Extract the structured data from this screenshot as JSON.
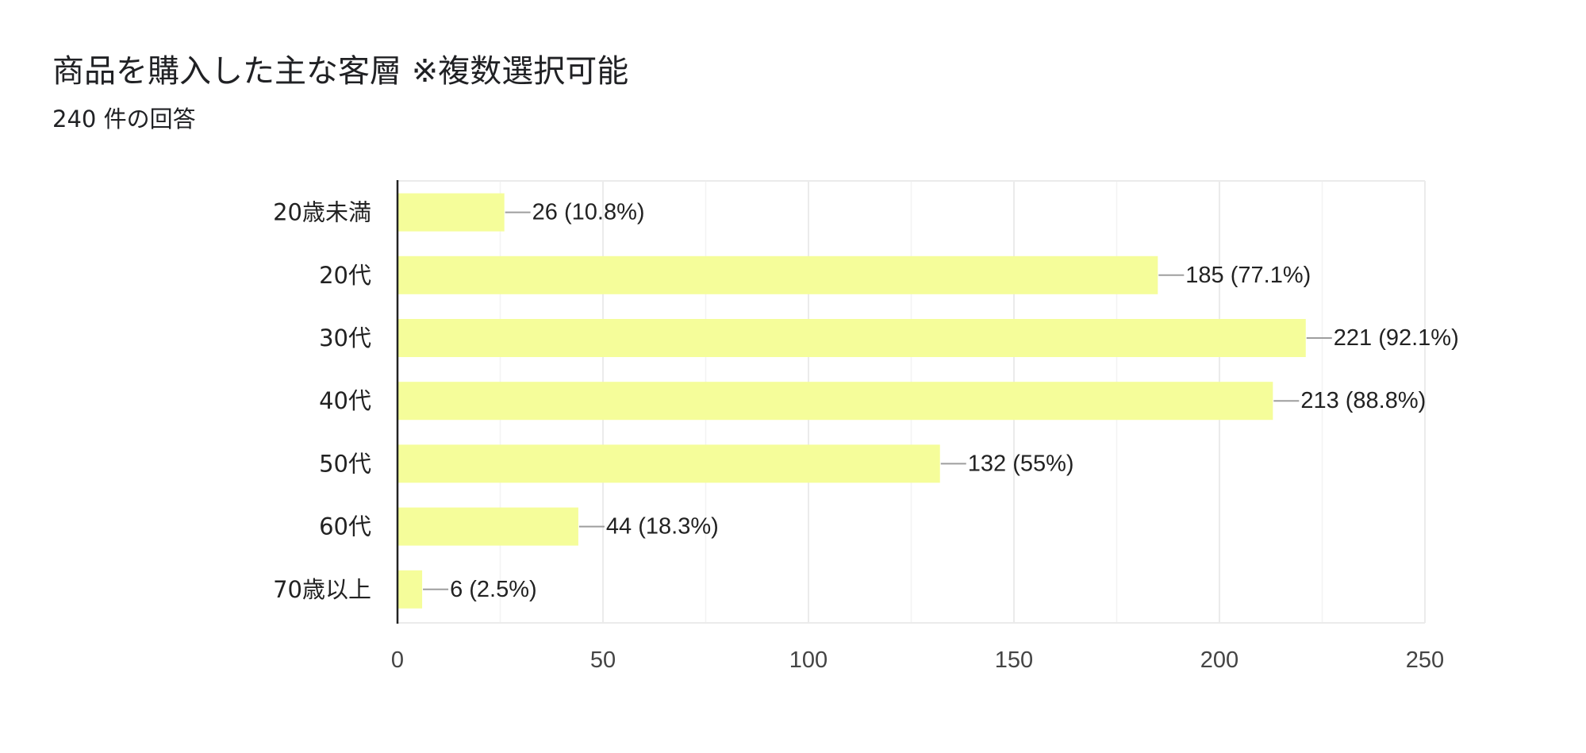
{
  "chart_data": {
    "type": "bar",
    "orientation": "horizontal",
    "title": "商品を購入した主な客層 ※複数選択可能",
    "subtitle": "240 件の回答",
    "categories": [
      "20歳未満",
      "20代",
      "30代",
      "40代",
      "50代",
      "60代",
      "70歳以上"
    ],
    "values": [
      26,
      185,
      221,
      213,
      132,
      44,
      6
    ],
    "data_labels": [
      "26 (10.8%)",
      "185 (77.1%)",
      "221 (92.1%)",
      "213 (88.8%)",
      "132 (55%)",
      "44 (18.3%)",
      "6 (2.5%)"
    ],
    "xlim": [
      0,
      250
    ],
    "xticks": [
      0,
      50,
      100,
      150,
      200,
      250
    ],
    "grid": true,
    "bar_color": "#f5fd9a",
    "axis_color": "#222222",
    "grid_color": "#ebebeb",
    "leader_color": "#9e9e9e"
  }
}
